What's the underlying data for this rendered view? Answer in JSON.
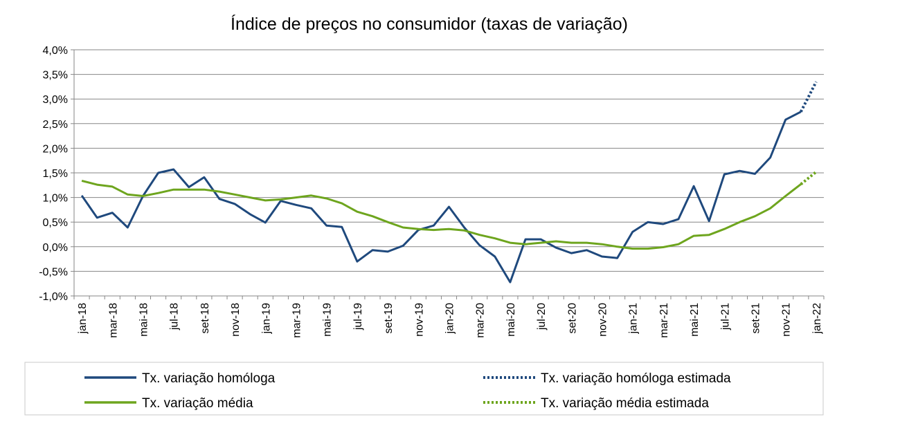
{
  "chart_data": {
    "type": "line",
    "title": "Índice de preços no consumidor  (taxas  de variação)",
    "xlabel": "",
    "ylabel": "",
    "ylim": [
      -1.0,
      4.0
    ],
    "y_ticks": [
      "4,0%",
      "3,5%",
      "3,0%",
      "2,5%",
      "2,0%",
      "1,5%",
      "1,0%",
      "0,5%",
      "0,0%",
      "-0,5%",
      "-1,0%"
    ],
    "x_tick_labels": [
      "jan-18",
      "mar-18",
      "mai-18",
      "jul-18",
      "set-18",
      "nov-18",
      "jan-19",
      "mar-19",
      "mai-19",
      "jul-19",
      "set-19",
      "nov-19",
      "jan-20",
      "mar-20",
      "mai-20",
      "jul-20",
      "set-20",
      "nov-20",
      "jan-21",
      "mar-21",
      "mai-21",
      "jul-21",
      "set-21",
      "nov-21",
      "jan-22"
    ],
    "categories": [
      "jan-18",
      "fev-18",
      "mar-18",
      "abr-18",
      "mai-18",
      "jun-18",
      "jul-18",
      "ago-18",
      "set-18",
      "out-18",
      "nov-18",
      "dez-18",
      "jan-19",
      "fev-19",
      "mar-19",
      "abr-19",
      "mai-19",
      "jun-19",
      "jul-19",
      "ago-19",
      "set-19",
      "out-19",
      "nov-19",
      "dez-19",
      "jan-20",
      "fev-20",
      "mar-20",
      "abr-20",
      "mai-20",
      "jun-20",
      "jul-20",
      "ago-20",
      "set-20",
      "out-20",
      "nov-20",
      "dez-20",
      "jan-21",
      "fev-21",
      "mar-21",
      "abr-21",
      "mai-21",
      "jun-21",
      "jul-21",
      "ago-21",
      "set-21",
      "out-21",
      "nov-21",
      "dez-21",
      "jan-22"
    ],
    "grid": true,
    "legend_position": "bottom",
    "series": [
      {
        "name": "Tx. variação homóloga",
        "color": "#1F497D",
        "style": "solid",
        "values": [
          1.04,
          0.59,
          0.69,
          0.39,
          1.03,
          1.5,
          1.57,
          1.21,
          1.41,
          0.97,
          0.87,
          0.66,
          0.49,
          0.93,
          0.85,
          0.78,
          0.43,
          0.4,
          -0.3,
          -0.07,
          -0.1,
          0.02,
          0.34,
          0.43,
          0.81,
          0.39,
          0.03,
          -0.2,
          -0.72,
          0.15,
          0.15,
          -0.02,
          -0.13,
          -0.07,
          -0.2,
          -0.23,
          0.3,
          0.5,
          0.46,
          0.56,
          1.23,
          0.52,
          1.47,
          1.54,
          1.48,
          1.81,
          2.58,
          2.74,
          null
        ]
      },
      {
        "name": "Tx. variação homóloga estimada",
        "color": "#1F497D",
        "style": "dotted",
        "values": [
          null,
          null,
          null,
          null,
          null,
          null,
          null,
          null,
          null,
          null,
          null,
          null,
          null,
          null,
          null,
          null,
          null,
          null,
          null,
          null,
          null,
          null,
          null,
          null,
          null,
          null,
          null,
          null,
          null,
          null,
          null,
          null,
          null,
          null,
          null,
          null,
          null,
          null,
          null,
          null,
          null,
          null,
          null,
          null,
          null,
          null,
          null,
          2.74,
          3.35
        ]
      },
      {
        "name": "Tx. variação média",
        "color": "#6EA51E",
        "style": "solid",
        "values": [
          1.34,
          1.26,
          1.22,
          1.06,
          1.03,
          1.09,
          1.16,
          1.16,
          1.16,
          1.12,
          1.06,
          1.0,
          0.94,
          0.96,
          1.0,
          1.04,
          0.98,
          0.88,
          0.71,
          0.62,
          0.5,
          0.39,
          0.36,
          0.34,
          0.36,
          0.33,
          0.24,
          0.17,
          0.08,
          0.05,
          0.08,
          0.11,
          0.08,
          0.08,
          0.05,
          0.0,
          -0.04,
          -0.04,
          -0.01,
          0.05,
          0.22,
          0.24,
          0.36,
          0.5,
          0.62,
          0.78,
          1.03,
          1.27,
          null
        ]
      },
      {
        "name": "Tx. variação média estimada",
        "color": "#6EA51E",
        "style": "dotted",
        "values": [
          null,
          null,
          null,
          null,
          null,
          null,
          null,
          null,
          null,
          null,
          null,
          null,
          null,
          null,
          null,
          null,
          null,
          null,
          null,
          null,
          null,
          null,
          null,
          null,
          null,
          null,
          null,
          null,
          null,
          null,
          null,
          null,
          null,
          null,
          null,
          null,
          null,
          null,
          null,
          null,
          null,
          null,
          null,
          null,
          null,
          null,
          null,
          1.27,
          1.52
        ]
      }
    ]
  }
}
